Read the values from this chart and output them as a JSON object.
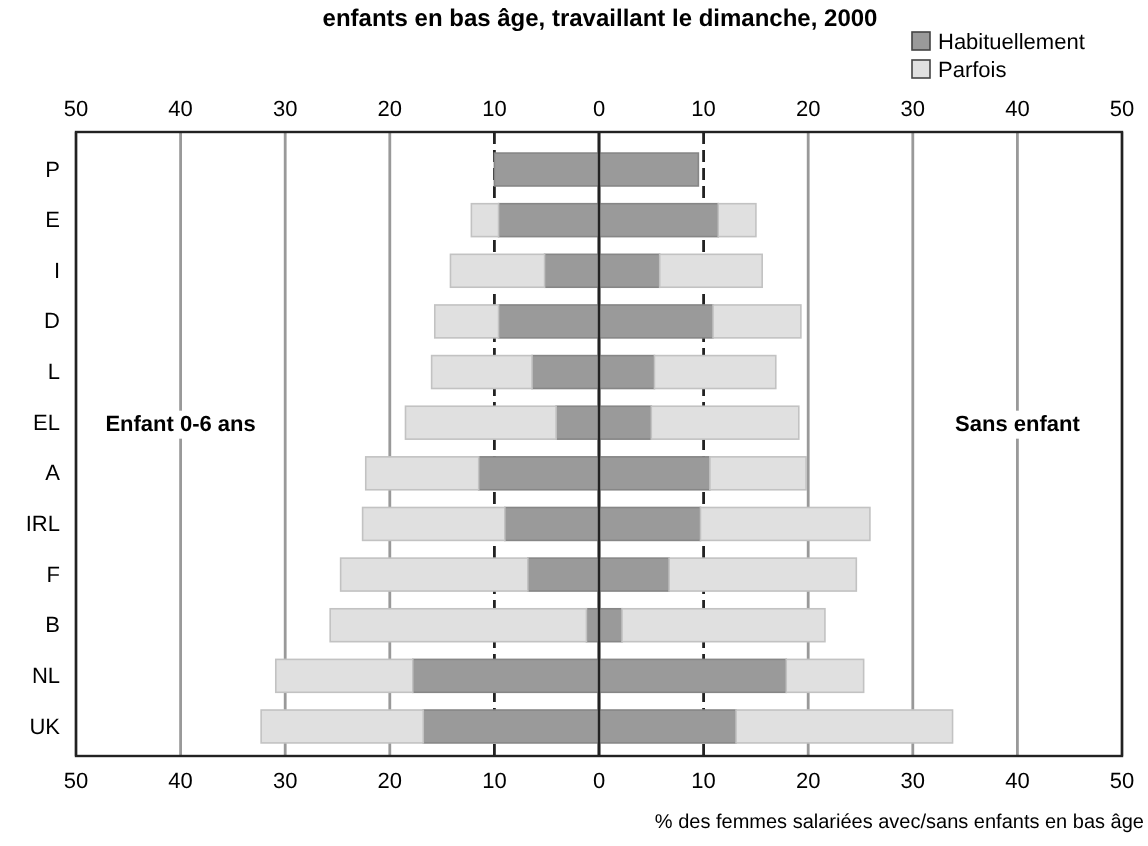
{
  "chart_data": {
    "type": "bar",
    "orientation": "horizontal",
    "stacked": true,
    "title": "enfants en bas âge, travaillant le dimanche, 2000",
    "xlabel": "% des femmes salariées avec/sans enfants en bas âge",
    "categories": [
      "P",
      "E",
      "I",
      "D",
      "L",
      "EL",
      "A",
      "IRL",
      "F",
      "B",
      "NL",
      "UK"
    ],
    "series": [
      {
        "name": "Habituellement",
        "color": "#9a9a9a",
        "values": [
          -10,
          -9.6,
          -5.2,
          -9.6,
          -6.4,
          -4.1,
          -11.5,
          -9.0,
          -6.8,
          -1.2,
          -17.8,
          -16.8
        ]
      },
      {
        "name": "Parfois",
        "color": "#e0e0e0",
        "values": [
          0,
          -2.6,
          -9.0,
          -6.1,
          -9.6,
          -14.4,
          -10.8,
          -13.6,
          -17.9,
          -24.5,
          -13.1,
          -15.5
        ]
      },
      {
        "color": "#9a9a9a",
        "values": [
          9.5,
          11.4,
          5.8,
          10.9,
          5.3,
          5.0,
          10.6,
          9.7,
          6.7,
          2.2,
          17.9,
          13.1
        ]
      },
      {
        "color": "#e0e0e0",
        "values": [
          0,
          3.6,
          9.8,
          8.4,
          11.6,
          14.1,
          9.2,
          16.2,
          17.9,
          19.4,
          7.4,
          20.7
        ]
      }
    ],
    "xlim": [
      -50,
      50
    ],
    "xticks": [
      {
        "value": -50,
        "label": "50"
      },
      {
        "value": -40,
        "label": "40"
      },
      {
        "value": -30,
        "label": "30"
      },
      {
        "value": -20,
        "label": "20"
      },
      {
        "value": -10,
        "label": "10"
      },
      0,
      10,
      20,
      30,
      40,
      50
    ],
    "x2lim": [
      -50,
      50
    ],
    "x2ticks": [
      {
        "value": -50,
        "label": "50"
      },
      {
        "value": -40,
        "label": "40"
      },
      {
        "value": -30,
        "label": "30"
      },
      {
        "value": -20,
        "label": "20"
      },
      {
        "value": -10,
        "label": "10"
      },
      0,
      10,
      20,
      30,
      40,
      50
    ],
    "annotations": [
      "Enfant 0-6 ans",
      "Sans enfant"
    ],
    "grid": "x",
    "legend": "top right"
  }
}
